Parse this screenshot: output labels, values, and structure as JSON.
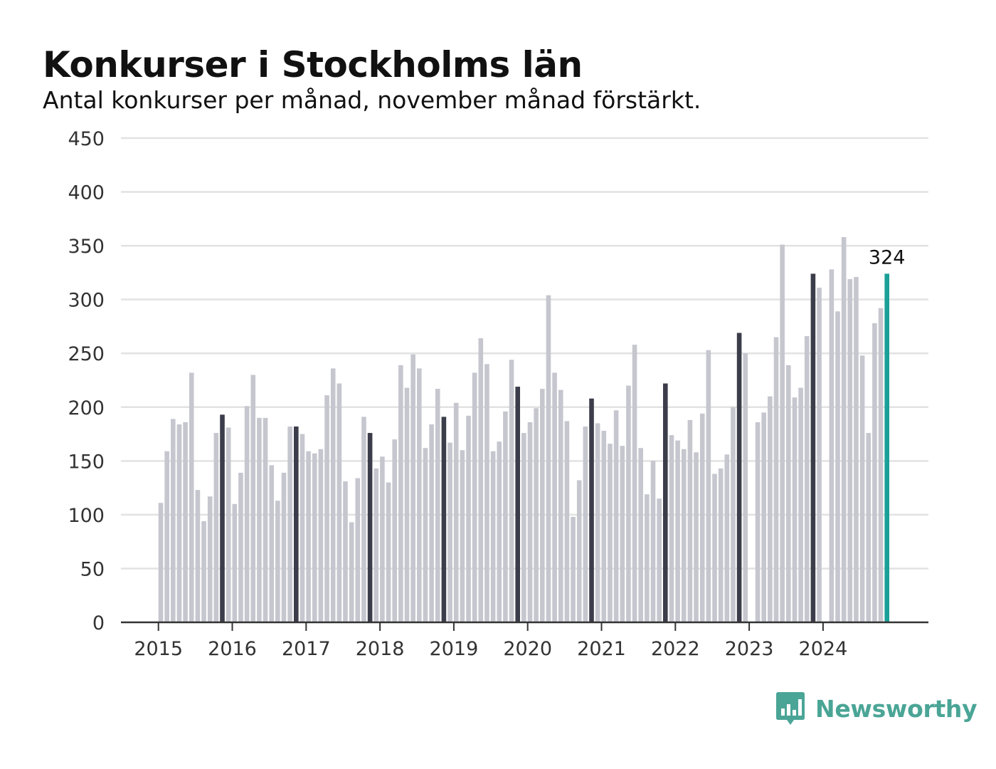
{
  "chart_data": {
    "type": "bar",
    "title": "Konkurser i Stockholms län",
    "subtitle": "Antal konkurser per månad, november månad förstärkt.",
    "x_start": "2015-01",
    "x_end": "2024-11",
    "ylim": [
      0,
      450
    ],
    "yticks": [
      0,
      50,
      100,
      150,
      200,
      250,
      300,
      350,
      400,
      450
    ],
    "xtick_labels": [
      "2015",
      "2016",
      "2017",
      "2018",
      "2019",
      "2020",
      "2021",
      "2022",
      "2023",
      "2024"
    ],
    "grid": true,
    "highlight_month": "November",
    "highlight_label": "324",
    "values": [
      111,
      159,
      189,
      184,
      186,
      232,
      123,
      94,
      117,
      176,
      193,
      181,
      110,
      139,
      201,
      230,
      190,
      190,
      146,
      113,
      139,
      182,
      182,
      175,
      159,
      157,
      161,
      211,
      236,
      222,
      131,
      93,
      134,
      191,
      176,
      143,
      154,
      130,
      170,
      239,
      218,
      249,
      236,
      162,
      184,
      217,
      191,
      167,
      204,
      160,
      192,
      232,
      264,
      240,
      159,
      168,
      196,
      244,
      219,
      176,
      186,
      199,
      217,
      304,
      232,
      216,
      187,
      98,
      132,
      182,
      208,
      185,
      178,
      166,
      197,
      164,
      220,
      258,
      162,
      119,
      150,
      115,
      222,
      174,
      169,
      161,
      188,
      158,
      194,
      253,
      138,
      143,
      156,
      200,
      269,
      250,
      0,
      186,
      195,
      210,
      265,
      351,
      239,
      209,
      218,
      266,
      324,
      311,
      0,
      328,
      289,
      358,
      319,
      321,
      248,
      176,
      278,
      292,
      324
    ],
    "colors": {
      "regular": "#c6c6cf",
      "november": "#3c3d4a",
      "latest": "#1aa098",
      "grid": "#e2e2e2",
      "axis": "#333333"
    }
  },
  "brand": {
    "name": "Newsworthy",
    "logo_icon": "bar-chart-speech-bubble-icon",
    "color": "#4aa596"
  }
}
